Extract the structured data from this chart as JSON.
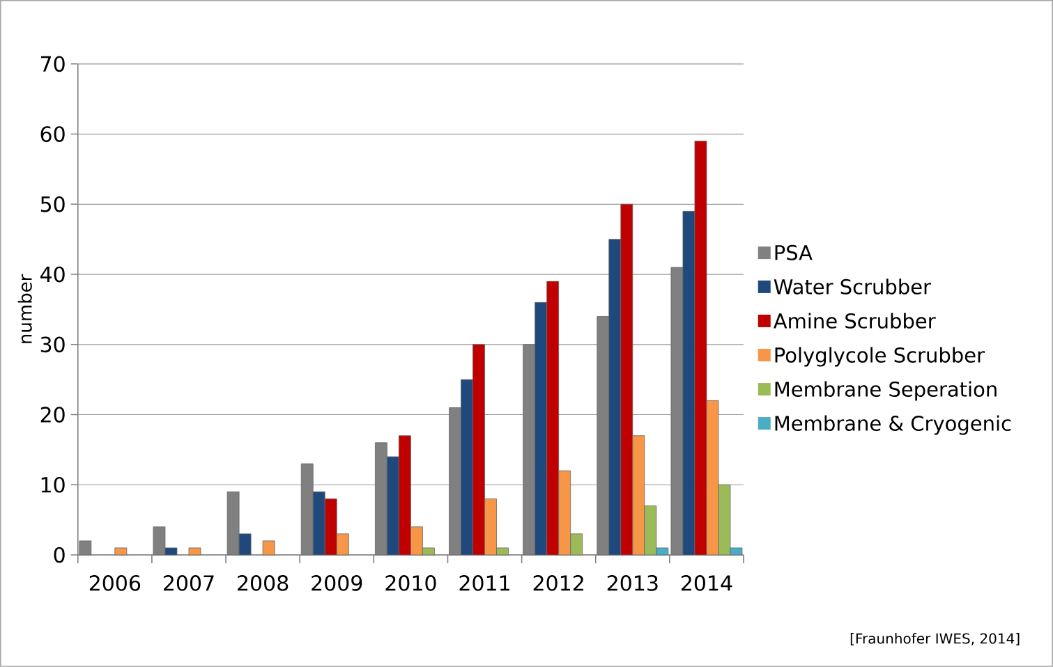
{
  "chart_data": {
    "type": "bar",
    "ylabel": "number",
    "categories": [
      "2006",
      "2007",
      "2008",
      "2009",
      "2010",
      "2011",
      "2012",
      "2013",
      "2014"
    ],
    "series": [
      {
        "name": "PSA",
        "color": "#808080",
        "values": [
          2,
          4,
          9,
          13,
          16,
          21,
          30,
          34,
          41
        ]
      },
      {
        "name": "Water Scrubber",
        "color": "#1f497d",
        "values": [
          null,
          1,
          3,
          9,
          14,
          25,
          36,
          45,
          49
        ]
      },
      {
        "name": "Amine Scrubber",
        "color": "#c00000",
        "values": [
          null,
          null,
          null,
          8,
          17,
          30,
          39,
          50,
          59
        ]
      },
      {
        "name": "Polyglycole Scrubber",
        "color": "#f79646",
        "values": [
          1,
          1,
          2,
          3,
          4,
          8,
          12,
          17,
          22
        ]
      },
      {
        "name": "Membrane Seperation",
        "color": "#9bbb59",
        "values": [
          null,
          null,
          null,
          null,
          1,
          1,
          3,
          7,
          10
        ]
      },
      {
        "name": "Membrane & Cryogenic",
        "color": "#4bacc6",
        "values": [
          null,
          null,
          null,
          null,
          null,
          null,
          null,
          1,
          1
        ]
      }
    ],
    "ylim": [
      0,
      70
    ],
    "yticks": [
      0,
      10,
      20,
      30,
      40,
      50,
      60,
      70
    ],
    "grid": "y",
    "legend": "right",
    "annotations": [
      "[Fraunhofer IWES, 2014]"
    ]
  }
}
